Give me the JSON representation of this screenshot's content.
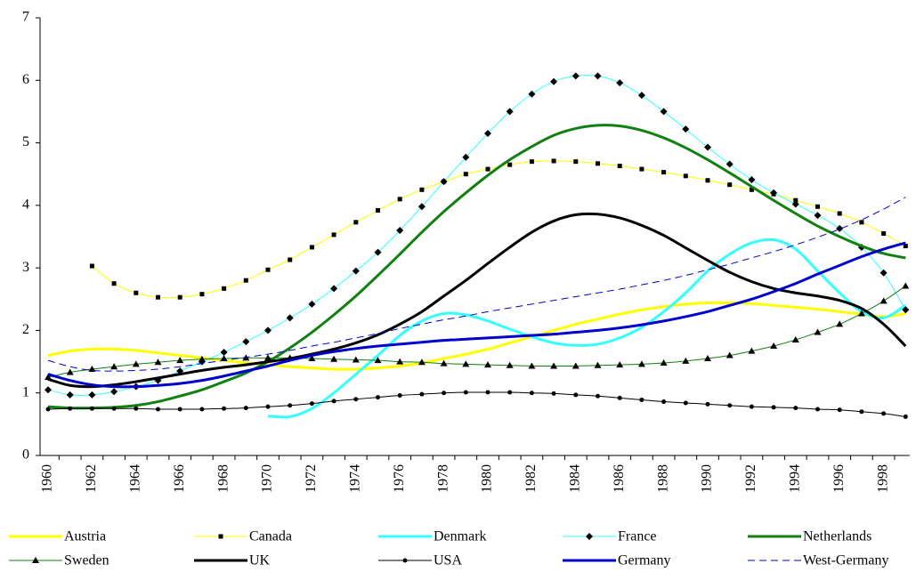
{
  "chart_data": {
    "type": "line",
    "categories": [
      "1960",
      null,
      "1962",
      null,
      "1964",
      null,
      "1966",
      null,
      "1968",
      null,
      "1970",
      null,
      "1972",
      null,
      "1974",
      null,
      "1976",
      null,
      "1978",
      null,
      "1980",
      null,
      "1982",
      null,
      "1984",
      null,
      "1986",
      null,
      "1988",
      null,
      "1990",
      null,
      "1992",
      null,
      "1994",
      null,
      "1996",
      null,
      "1998",
      null
    ],
    "ylim": [
      0,
      7
    ],
    "yticks": [
      0,
      1,
      2,
      3,
      4,
      5,
      6,
      7
    ],
    "grid": false,
    "legend": "bottom",
    "series": [
      {
        "name": "Austria",
        "color": "#ffff00",
        "line_width": 3,
        "values": [
          1.6,
          1.67,
          1.7,
          1.7,
          1.68,
          1.64,
          1.6,
          1.56,
          1.52,
          1.48,
          1.45,
          1.42,
          1.4,
          1.38,
          1.38,
          1.4,
          1.43,
          1.48,
          1.55,
          1.62,
          1.7,
          1.8,
          1.9,
          2.0,
          2.1,
          2.18,
          2.26,
          2.33,
          2.38,
          2.42,
          2.44,
          2.44,
          2.43,
          2.4,
          2.37,
          2.34,
          2.3,
          2.26,
          2.22,
          2.27
        ]
      },
      {
        "name": "Canada",
        "color": "#ffff00",
        "line_width": 1,
        "marker": "square",
        "values": [
          null,
          null,
          3.03,
          2.75,
          2.6,
          2.53,
          2.53,
          2.58,
          2.67,
          2.8,
          2.97,
          3.13,
          3.33,
          3.53,
          3.73,
          3.92,
          4.1,
          4.25,
          4.38,
          4.5,
          4.58,
          4.65,
          4.7,
          4.71,
          4.7,
          4.67,
          4.63,
          4.58,
          4.53,
          4.47,
          4.4,
          4.33,
          4.25,
          4.18,
          4.08,
          3.98,
          3.87,
          3.73,
          3.55,
          3.35
        ]
      },
      {
        "name": "Denmark",
        "color": "#33ffff",
        "line_width": 3,
        "values": [
          null,
          null,
          null,
          null,
          null,
          null,
          null,
          null,
          null,
          null,
          0.63,
          0.62,
          0.75,
          1.0,
          1.3,
          1.6,
          1.92,
          2.15,
          2.27,
          2.25,
          2.15,
          2.02,
          1.9,
          1.8,
          1.76,
          1.78,
          1.88,
          2.05,
          2.3,
          2.6,
          2.95,
          3.22,
          3.4,
          3.45,
          3.3,
          2.95,
          2.6,
          2.3,
          2.2,
          2.4
        ]
      },
      {
        "name": "France",
        "color": "#33ffff",
        "line_width": 1,
        "marker": "diamond",
        "values": [
          1.05,
          0.97,
          0.97,
          1.02,
          1.1,
          1.2,
          1.35,
          1.5,
          1.65,
          1.82,
          2.0,
          2.2,
          2.42,
          2.67,
          2.95,
          3.25,
          3.6,
          3.98,
          4.38,
          4.77,
          5.15,
          5.5,
          5.78,
          5.98,
          6.07,
          6.07,
          5.96,
          5.76,
          5.5,
          5.22,
          4.93,
          4.66,
          4.41,
          4.2,
          4.02,
          3.84,
          3.63,
          3.33,
          2.92,
          2.33
        ]
      },
      {
        "name": "Netherlands",
        "color": "#108010",
        "line_width": 3,
        "values": [
          0.78,
          0.76,
          0.76,
          0.77,
          0.8,
          0.86,
          0.95,
          1.05,
          1.18,
          1.32,
          1.5,
          1.72,
          1.97,
          2.25,
          2.55,
          2.88,
          3.22,
          3.57,
          3.9,
          4.2,
          4.48,
          4.73,
          4.94,
          5.12,
          5.23,
          5.28,
          5.27,
          5.2,
          5.08,
          4.92,
          4.73,
          4.52,
          4.3,
          4.08,
          3.87,
          3.67,
          3.5,
          3.35,
          3.23,
          3.16
        ]
      },
      {
        "name": "Sweden",
        "color": "#108010",
        "line_width": 1,
        "marker": "triangle",
        "values": [
          1.25,
          1.33,
          1.38,
          1.42,
          1.46,
          1.49,
          1.52,
          1.54,
          1.55,
          1.56,
          1.56,
          1.56,
          1.55,
          1.54,
          1.53,
          1.52,
          1.5,
          1.49,
          1.47,
          1.46,
          1.45,
          1.44,
          1.43,
          1.43,
          1.43,
          1.44,
          1.45,
          1.46,
          1.48,
          1.51,
          1.55,
          1.6,
          1.67,
          1.75,
          1.85,
          1.97,
          2.1,
          2.27,
          2.47,
          2.71
        ]
      },
      {
        "name": "UK",
        "color": "#000000",
        "line_width": 3,
        "values": [
          1.22,
          1.12,
          1.1,
          1.13,
          1.18,
          1.24,
          1.3,
          1.36,
          1.41,
          1.45,
          1.5,
          1.55,
          1.62,
          1.7,
          1.8,
          1.93,
          2.1,
          2.3,
          2.55,
          2.8,
          3.07,
          3.33,
          3.57,
          3.75,
          3.85,
          3.86,
          3.8,
          3.68,
          3.52,
          3.32,
          3.12,
          2.93,
          2.78,
          2.67,
          2.6,
          2.55,
          2.48,
          2.35,
          2.1,
          1.75
        ]
      },
      {
        "name": "USA",
        "color": "#000000",
        "line_width": 1,
        "marker": "circle",
        "values": [
          0.74,
          0.75,
          0.75,
          0.75,
          0.75,
          0.74,
          0.74,
          0.74,
          0.75,
          0.76,
          0.78,
          0.8,
          0.83,
          0.87,
          0.9,
          0.93,
          0.96,
          0.98,
          1.0,
          1.01,
          1.01,
          1.01,
          1.0,
          0.99,
          0.97,
          0.95,
          0.92,
          0.89,
          0.86,
          0.84,
          0.82,
          0.8,
          0.78,
          0.77,
          0.76,
          0.74,
          0.73,
          0.7,
          0.67,
          0.62
        ]
      },
      {
        "name": "Germany",
        "color": "#0000cc",
        "line_width": 3,
        "values": [
          1.3,
          1.2,
          1.13,
          1.1,
          1.1,
          1.12,
          1.15,
          1.2,
          1.27,
          1.35,
          1.43,
          1.52,
          1.6,
          1.66,
          1.71,
          1.75,
          1.78,
          1.81,
          1.84,
          1.86,
          1.88,
          1.9,
          1.92,
          1.94,
          1.97,
          2.0,
          2.04,
          2.09,
          2.15,
          2.22,
          2.3,
          2.4,
          2.5,
          2.62,
          2.75,
          2.9,
          3.04,
          3.18,
          3.3,
          3.4
        ]
      },
      {
        "name": "West-Germany",
        "color": "#0000cc",
        "line_width": 1,
        "dashed": true,
        "values": [
          1.52,
          1.42,
          1.36,
          1.35,
          1.36,
          1.38,
          1.42,
          1.47,
          1.52,
          1.57,
          1.62,
          1.68,
          1.75,
          1.81,
          1.88,
          1.95,
          2.03,
          2.1,
          2.17,
          2.23,
          2.3,
          2.36,
          2.42,
          2.48,
          2.54,
          2.6,
          2.66,
          2.73,
          2.8,
          2.88,
          2.97,
          3.06,
          3.16,
          3.26,
          3.37,
          3.49,
          3.62,
          3.77,
          3.94,
          4.13
        ]
      }
    ]
  }
}
